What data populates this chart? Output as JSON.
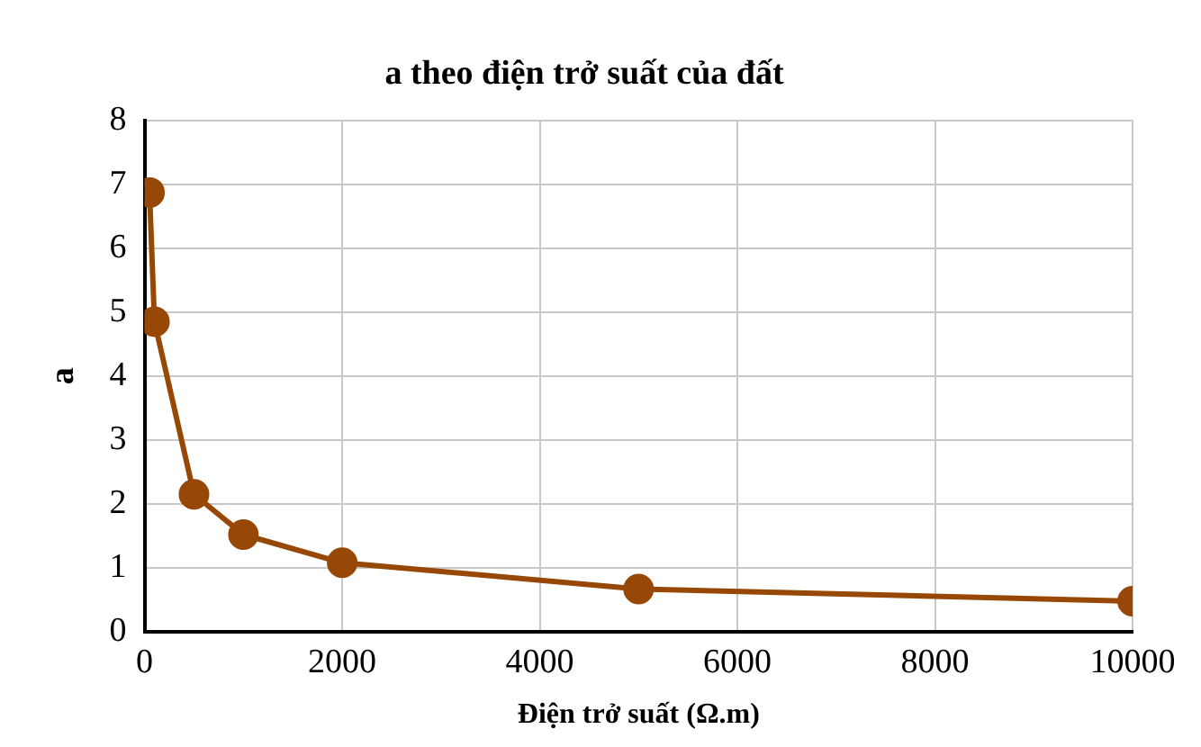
{
  "chart_data": {
    "type": "line",
    "title": "a theo điện trở suất của đất",
    "xlabel": "Điện trở suất (Ω.m)",
    "ylabel": "a",
    "x": [
      50,
      100,
      500,
      1000,
      2000,
      5000,
      10000
    ],
    "series": [
      {
        "color": "#974806",
        "values": [
          6.87,
          4.85,
          2.15,
          1.52,
          1.08,
          0.67,
          0.48
        ]
      }
    ],
    "xlim": [
      0,
      10000
    ],
    "xticks": [
      0,
      2000,
      4000,
      6000,
      8000,
      10000
    ],
    "ylim": [
      0,
      8
    ],
    "yticks": [
      0,
      1,
      2,
      3,
      4,
      5,
      6,
      7,
      8
    ],
    "grid": true,
    "marker": "circle",
    "line_style": "solid"
  }
}
